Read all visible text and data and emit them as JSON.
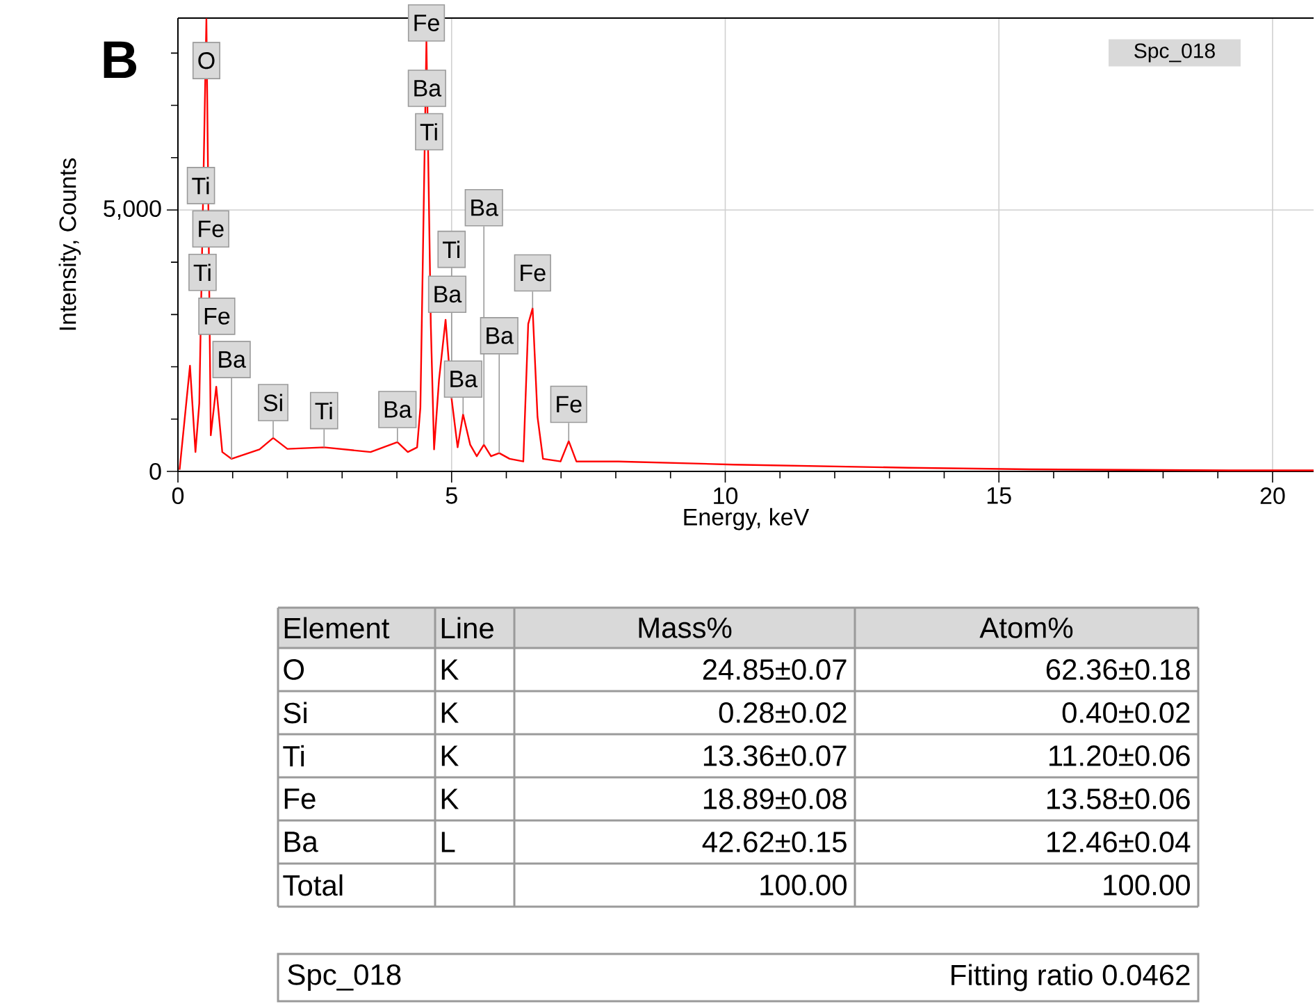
{
  "chart_data": {
    "type": "line",
    "xlabel": "Energy, keV",
    "ylabel": "Intensity, Counts",
    "xlim": [
      0,
      20.75
    ],
    "ylim": [
      0,
      8670
    ],
    "xticks": [
      0,
      5,
      10,
      15,
      20
    ],
    "yticks": [
      0,
      {
        "value": 5000,
        "label": "5,000"
      }
    ],
    "grid": true,
    "x": [
      0.03,
      0.22,
      0.32,
      0.39,
      0.52,
      0.6,
      0.7,
      0.81,
      0.98,
      1.49,
      1.74,
      2.0,
      2.67,
      3.52,
      4.01,
      4.2,
      4.37,
      4.43,
      4.54,
      4.62,
      4.68,
      4.77,
      4.89,
      5.0,
      5.11,
      5.21,
      5.34,
      5.46,
      5.59,
      5.72,
      5.87,
      6.06,
      6.31,
      6.4,
      6.48,
      6.57,
      6.67,
      6.99,
      7.14,
      7.28,
      8.05,
      10.15,
      13.35,
      15.56,
      19.2,
      20.75
    ],
    "series": [
      {
        "color": "#ff0000",
        "values": [
          30,
          2020,
          370,
          1300,
          8650,
          690,
          1620,
          370,
          240,
          420,
          640,
          430,
          460,
          370,
          560,
          370,
          460,
          1220,
          8220,
          2820,
          420,
          1750,
          2900,
          1390,
          460,
          1090,
          510,
          290,
          510,
          290,
          350,
          240,
          190,
          2820,
          3120,
          1040,
          240,
          190,
          580,
          190,
          190,
          130,
          70,
          40,
          20,
          20
        ]
      }
    ],
    "annotations": [
      "B",
      "Spc_018",
      {
        "text": "O",
        "x": 0.52,
        "y": 7500
      },
      {
        "text": "Ti",
        "x": 0.42,
        "y": 5110
      },
      {
        "text": "Fe",
        "x": 0.6,
        "y": 4280
      },
      {
        "text": "Ti",
        "x": 0.45,
        "y": 3450
      },
      {
        "text": "Fe",
        "x": 0.71,
        "y": 2610
      },
      {
        "text": "Ba",
        "x": 0.98,
        "y": 240
      },
      {
        "text": "Si",
        "x": 1.74,
        "y": 640
      },
      {
        "text": "Ti",
        "x": 2.67,
        "y": 460
      },
      {
        "text": "Ba",
        "x": 4.01,
        "y": 560
      },
      {
        "text": "Fe",
        "x": 4.54,
        "y": 8220
      },
      {
        "text": "Ba",
        "x": 4.55,
        "y": 6970
      },
      {
        "text": "Ti",
        "x": 4.59,
        "y": 6140
      },
      {
        "text": "Ba",
        "x": 5.59,
        "y": 510
      },
      {
        "text": "Ti",
        "x": 5.0,
        "y": 1390
      },
      {
        "text": "Ba",
        "x": 4.92,
        "y": 3030
      },
      {
        "text": "Fe",
        "x": 6.48,
        "y": 3120
      },
      {
        "text": "Ba",
        "x": 5.87,
        "y": 350
      },
      {
        "text": "Ba",
        "x": 5.21,
        "y": 1090
      },
      {
        "text": "Fe",
        "x": 7.14,
        "y": 580
      },
      "Element",
      "Line",
      "Mass%",
      "Atom%",
      "O",
      "K",
      "24.85±0.07",
      "62.36±0.18",
      "Si",
      "K",
      "0.28±0.02",
      "0.40±0.02",
      "Ti",
      "K",
      "13.36±0.07",
      "11.20±0.06",
      "Fe",
      "K",
      "18.89±0.08",
      "13.58±0.06",
      "Ba",
      "L",
      "42.62±0.15",
      "12.46±0.04",
      "Total",
      "100.00",
      "100.00",
      "Spc_018",
      "Fitting ratio 0.0462"
    ]
  }
}
